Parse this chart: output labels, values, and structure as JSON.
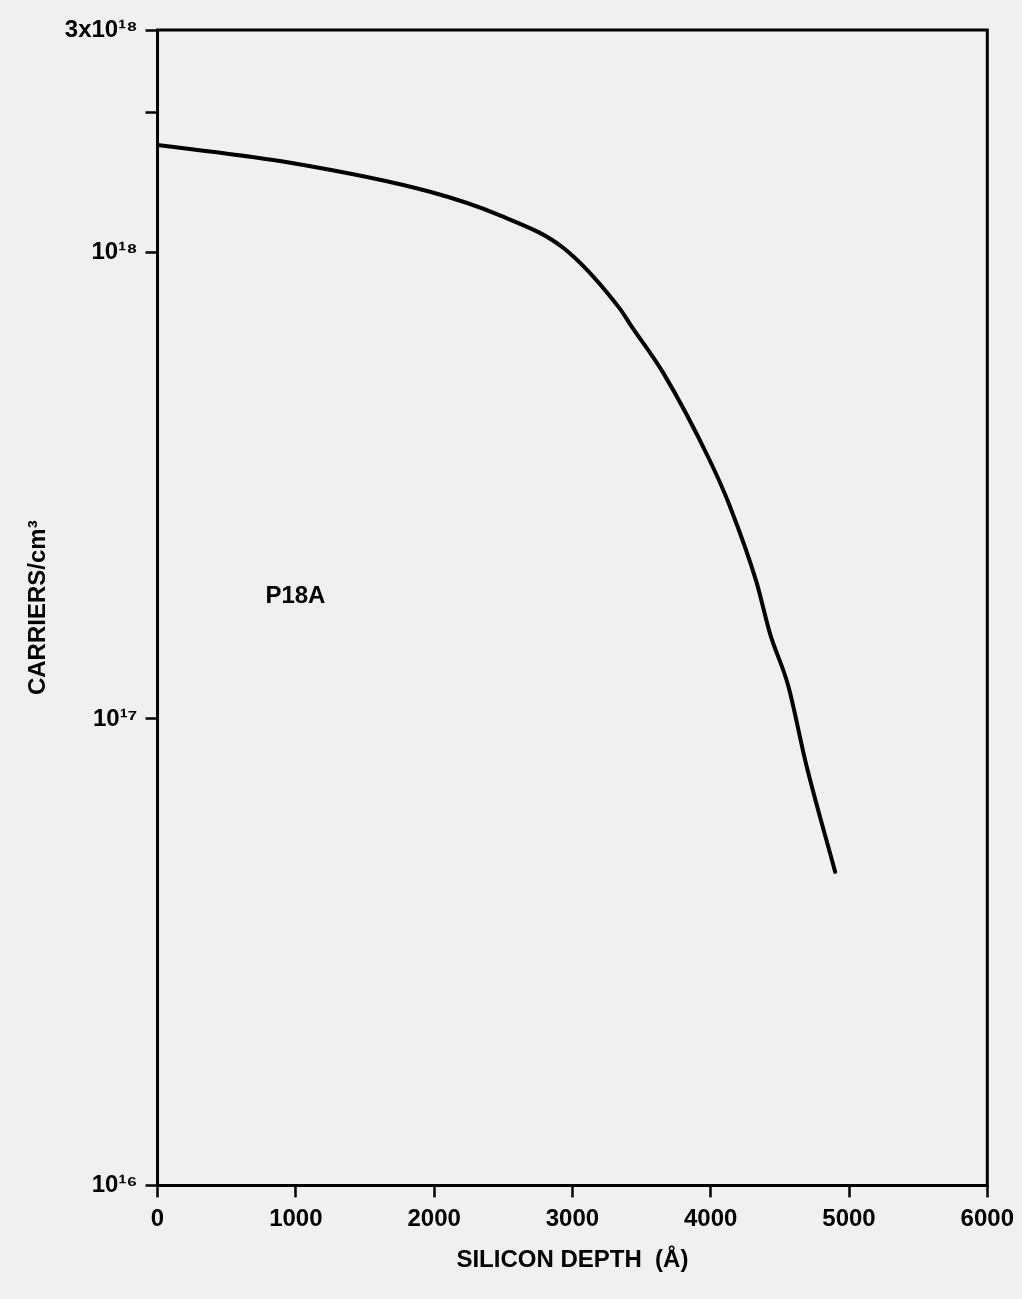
{
  "chart_data": {
    "type": "line",
    "xlabel": "SILICON DEPTH  (Å)",
    "ylabel": "CARRIERS/cm³",
    "x": [
      0,
      950,
      1970,
      2480,
      2940,
      3340,
      3420,
      3660,
      3990,
      4130,
      4330,
      4430,
      4560,
      4690,
      4900
    ],
    "series": [
      {
        "color": "#000000",
        "values": [
          1.7e+18,
          1.56e+18,
          1.35e+18,
          1.2e+18,
          1.02e+18,
          7.6e+17,
          7e+17,
          5.5e+17,
          3.6e+17,
          2.9e+17,
          1.97e+17,
          1.52e+17,
          1.18e+17,
          8e+16,
          4.7e+16
        ]
      }
    ],
    "xlim": [
      0,
      6000
    ],
    "xticks": [
      0,
      1000,
      2000,
      3000,
      4000,
      5000,
      6000
    ],
    "ylim": [
      1e+16,
      3e+18
    ],
    "yticks": [
      {
        "value": 1e+16,
        "label": "10¹⁶"
      },
      {
        "value": 1e+17,
        "label": "10¹⁷"
      },
      {
        "value": 1e+18,
        "label": "10¹⁸"
      },
      {
        "value": 2e+18,
        "label": null
      },
      {
        "value": 3e+18,
        "label": "3x10¹⁸"
      }
    ],
    "log": "y",
    "grid": false,
    "marker": "none",
    "line_style": "solid",
    "annotations": [
      "P18A"
    ]
  }
}
